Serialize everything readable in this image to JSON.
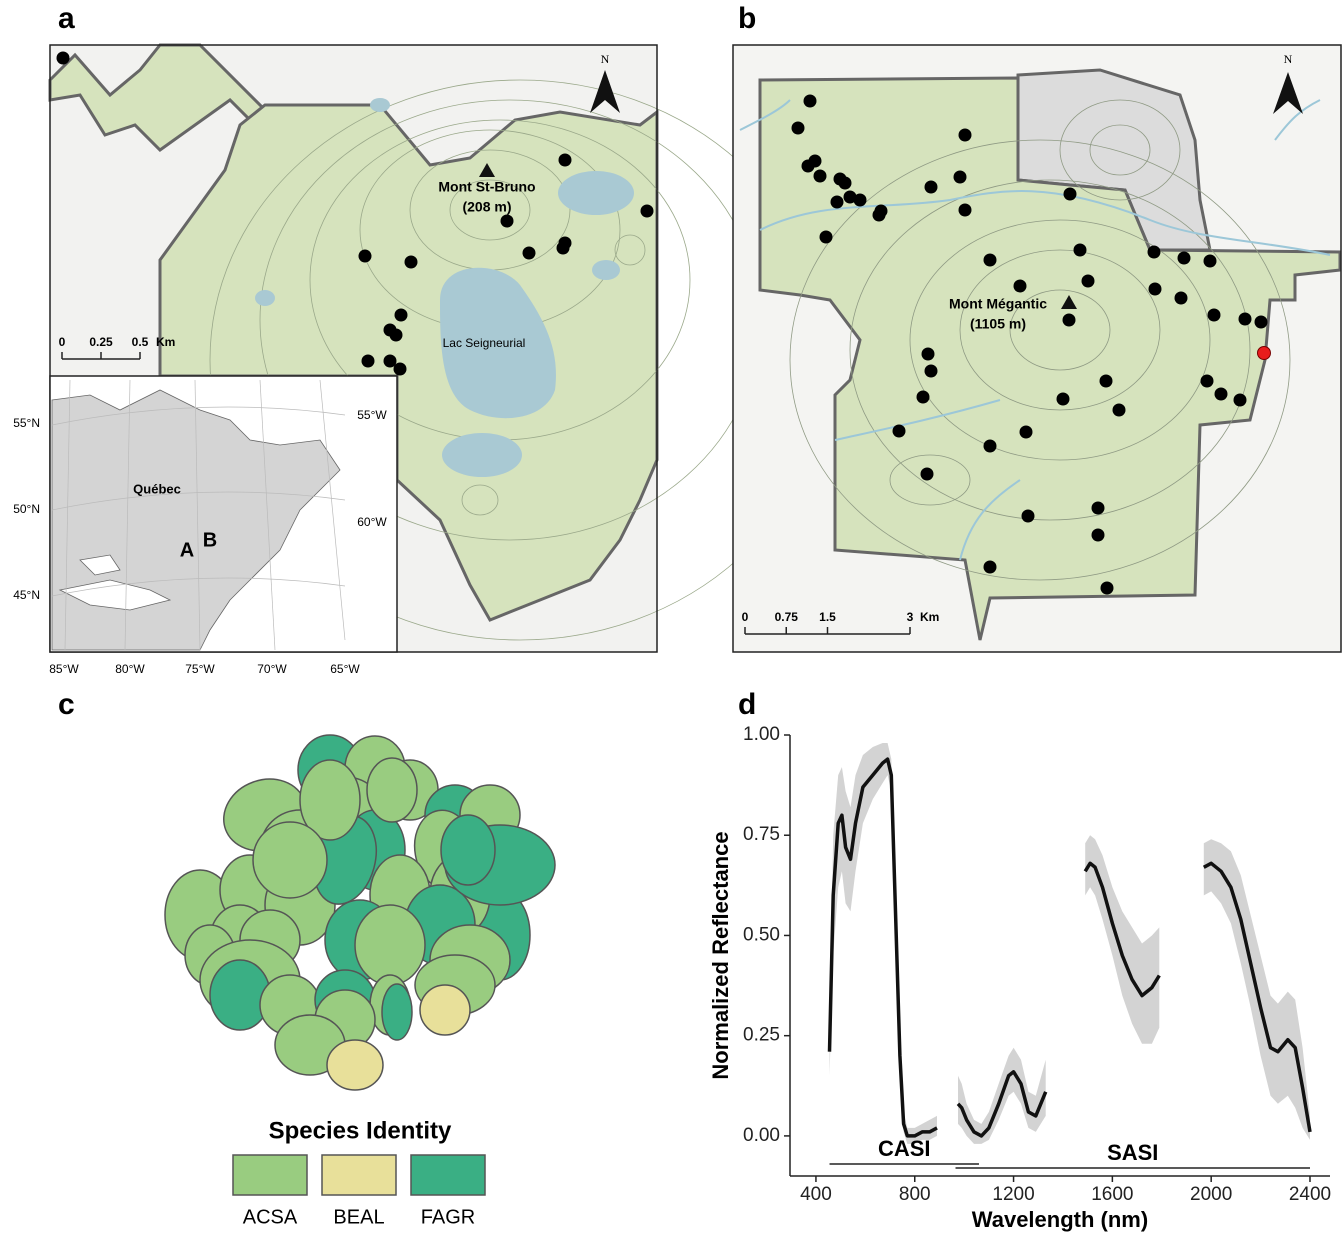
{
  "panel_labels": [
    "a",
    "b",
    "c",
    "d"
  ],
  "map_a": {
    "peak": "Mont St-Bruno",
    "elevation": "(208 m)",
    "lake": "Lac Seigneurial",
    "north": "N",
    "scale_ticks": [
      0,
      0.25,
      0.5
    ],
    "scale_unit": "Km"
  },
  "inset": {
    "region": "Québec",
    "site_a": "A",
    "site_b": "B",
    "lat_labels": [
      "55°N",
      "50°N",
      "45°N"
    ],
    "lon_labels": [
      "85°W",
      "80°W",
      "75°W",
      "70°W",
      "65°W"
    ],
    "lon_labels_inner": [
      "55°W",
      "60°W"
    ]
  },
  "map_b": {
    "peak": "Mont Mégantic",
    "elevation": "(1105 m)",
    "north": "N",
    "scale_ticks": [
      0,
      0.75,
      1.5,
      3
    ],
    "scale_unit": "Km"
  },
  "legend": {
    "title": "Species Identity",
    "items": [
      {
        "name": "ACSA",
        "color": "#99cc80"
      },
      {
        "name": "BEAL",
        "color": "#e8e09a"
      },
      {
        "name": "FAGR",
        "color": "#3aaf84"
      }
    ]
  },
  "chart_data": {
    "type": "line",
    "xlabel": "Wavelength (nm)",
    "ylabel": "Normalized Reflectance",
    "xlim": [
      295,
      2481
    ],
    "ylim": [
      -0.1,
      1.0
    ],
    "xticks": [
      400,
      800,
      1200,
      1600,
      2000,
      2400
    ],
    "yticks": [
      {
        "value": 0,
        "label": "0.00"
      },
      {
        "value": 0.25,
        "label": "0.25"
      },
      {
        "value": 0.5,
        "label": "0.50"
      },
      {
        "value": 0.75,
        "label": "0.75"
      },
      {
        "value": 1,
        "label": "1.00"
      }
    ],
    "color": "#111111",
    "band_color": "#d3d3d3",
    "x": [
      455,
      470,
      490,
      505,
      520,
      540,
      560,
      590,
      630,
      670,
      690,
      705,
      720,
      740,
      755,
      770,
      800,
      830,
      860,
      890,
      null,
      975,
      990,
      1010,
      1040,
      1070,
      1100,
      1140,
      1180,
      1200,
      1230,
      1260,
      1290,
      1330,
      null,
      1490,
      1510,
      1530,
      1560,
      1600,
      1640,
      1680,
      1720,
      1760,
      1790,
      null,
      1970,
      2000,
      2040,
      2080,
      2120,
      2160,
      2200,
      2240,
      2270,
      2310,
      2340,
      2370,
      2400
    ],
    "values": [
      0.21,
      0.6,
      0.78,
      0.8,
      0.72,
      0.69,
      0.78,
      0.87,
      0.9,
      0.93,
      0.94,
      0.9,
      0.6,
      0.2,
      0.03,
      0.0,
      0.0,
      0.01,
      0.01,
      0.02,
      null,
      0.08,
      0.07,
      0.04,
      0.01,
      0.0,
      0.02,
      0.08,
      0.15,
      0.16,
      0.13,
      0.06,
      0.05,
      0.11,
      null,
      0.66,
      0.68,
      0.67,
      0.62,
      0.53,
      0.45,
      0.39,
      0.35,
      0.37,
      0.4,
      null,
      0.67,
      0.68,
      0.66,
      0.62,
      0.54,
      0.43,
      0.32,
      0.22,
      0.21,
      0.24,
      0.22,
      0.12,
      0.01
    ],
    "lower": [
      0.15,
      0.45,
      0.62,
      0.66,
      0.58,
      0.56,
      0.66,
      0.78,
      0.84,
      0.88,
      0.9,
      0.86,
      0.55,
      0.16,
      0.01,
      -0.02,
      -0.02,
      -0.01,
      -0.01,
      0.0,
      null,
      0.03,
      0.02,
      0.0,
      -0.02,
      -0.02,
      -0.01,
      0.04,
      0.1,
      0.11,
      0.08,
      0.02,
      0.01,
      0.05,
      null,
      0.6,
      0.62,
      0.6,
      0.54,
      0.45,
      0.35,
      0.28,
      0.23,
      0.23,
      0.27,
      null,
      0.6,
      0.61,
      0.58,
      0.53,
      0.43,
      0.32,
      0.2,
      0.1,
      0.08,
      0.1,
      0.07,
      0.02,
      -0.01
    ],
    "upper": [
      0.27,
      0.75,
      0.9,
      0.92,
      0.86,
      0.82,
      0.9,
      0.95,
      0.97,
      0.98,
      0.98,
      0.94,
      0.65,
      0.25,
      0.06,
      0.02,
      0.02,
      0.03,
      0.04,
      0.05,
      null,
      0.15,
      0.13,
      0.08,
      0.04,
      0.03,
      0.06,
      0.13,
      0.2,
      0.22,
      0.19,
      0.11,
      0.1,
      0.19,
      null,
      0.73,
      0.75,
      0.74,
      0.7,
      0.62,
      0.56,
      0.52,
      0.48,
      0.5,
      0.52,
      null,
      0.73,
      0.74,
      0.73,
      0.71,
      0.65,
      0.55,
      0.45,
      0.35,
      0.33,
      0.36,
      0.34,
      0.22,
      0.05
    ],
    "annotations": [
      {
        "text": "CASI",
        "x_range": [
          455,
          1060
        ],
        "y": -0.07
      },
      {
        "text": "SASI",
        "x_range": [
          965,
          2400
        ],
        "y": -0.08
      }
    ]
  }
}
